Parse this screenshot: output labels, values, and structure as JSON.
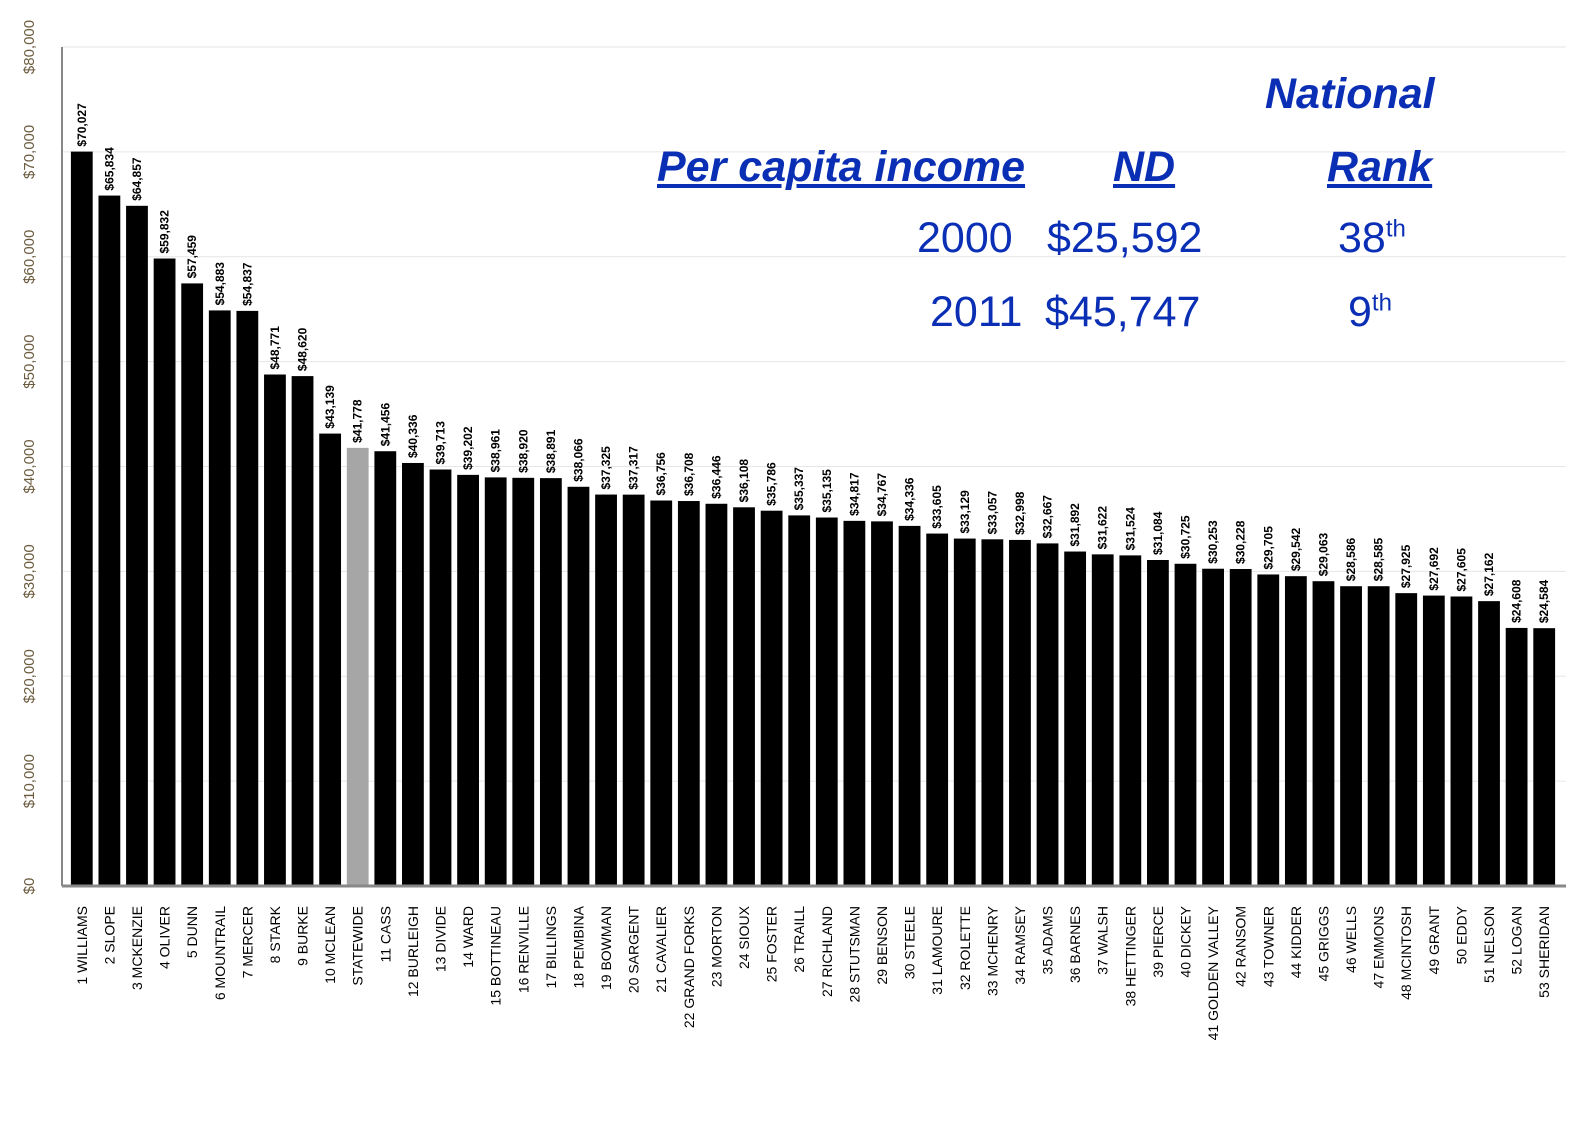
{
  "info_panel": {
    "header_top": "National",
    "col_label": "Per capita income",
    "col_nd": "ND",
    "col_rank": "Rank",
    "rows": [
      {
        "year": "2000",
        "nd": "$25,592",
        "rank_num": "38",
        "rank_suffix": "th"
      },
      {
        "year": "2011",
        "nd": "$45,747",
        "rank_num": "9",
        "rank_suffix": "th"
      }
    ]
  },
  "colors": {
    "bar": "#000000",
    "highlight": "#a6a6a6",
    "accent_text": "#0a2fb5"
  },
  "chart_data": {
    "type": "bar",
    "ylim": [
      0,
      80000
    ],
    "yticks": [
      0,
      10000,
      20000,
      30000,
      40000,
      50000,
      60000,
      70000,
      80000
    ],
    "ytick_labels": [
      "$0",
      "$10,000",
      "$20,000",
      "$30,000",
      "$40,000",
      "$50,000",
      "$60,000",
      "$70,000",
      "$80,000"
    ],
    "grid": true,
    "highlight_category": "STATEWIDE",
    "categories": [
      "1 WILLIAMS",
      "2 SLOPE",
      "3 MCKENZIE",
      "4 OLIVER",
      "5 DUNN",
      "6 MOUNTRAIL",
      "7 MERCER",
      "8 STARK",
      "9 BURKE",
      "10 MCLEAN",
      "STATEWIDE",
      "11 CASS",
      "12 BURLEIGH",
      "13 DIVIDE",
      "14 WARD",
      "15 BOTTINEAU",
      "16 RENVILLE",
      "17 BILLINGS",
      "18 PEMBINA",
      "19 BOWMAN",
      "20 SARGENT",
      "21 CAVALIER",
      "22 GRAND FORKS",
      "23 MORTON",
      "24 SIOUX",
      "25 FOSTER",
      "26 TRAILL",
      "27 RICHLAND",
      "28 STUTSMAN",
      "29 BENSON",
      "30 STEELE",
      "31 LAMOURE",
      "32 ROLETTE",
      "33 MCHENRY",
      "34 RAMSEY",
      "35 ADAMS",
      "36 BARNES",
      "37 WALSH",
      "38 HETTINGER",
      "39 PIERCE",
      "40 DICKEY",
      "41 GOLDEN VALLEY",
      "42 RANSOM",
      "43 TOWNER",
      "44 KIDDER",
      "45 GRIGGS",
      "46 WELLS",
      "47 EMMONS",
      "48 MCINTOSH",
      "49 GRANT",
      "50 EDDY",
      "51 NELSON",
      "52 LOGAN",
      "53 SHERIDAN"
    ],
    "values": [
      70027,
      65834,
      64857,
      59832,
      57459,
      54883,
      54837,
      48771,
      48620,
      43139,
      41778,
      41456,
      40336,
      39713,
      39202,
      38961,
      38920,
      38891,
      38066,
      37325,
      37317,
      36756,
      36708,
      36446,
      36108,
      35786,
      35337,
      35135,
      34817,
      34767,
      34336,
      33605,
      33129,
      33057,
      32998,
      32667,
      31892,
      31622,
      31524,
      31084,
      30725,
      30253,
      30228,
      29705,
      29542,
      29063,
      28586,
      28585,
      27925,
      27692,
      27605,
      27162,
      24608,
      24584
    ],
    "value_labels": [
      "$70,027",
      "$65,834",
      "$64,857",
      "$59,832",
      "$57,459",
      "$54,883",
      "$54,837",
      "$48,771",
      "$48,620",
      "$43,139",
      "$41,778",
      "$41,456",
      "$40,336",
      "$39,713",
      "$39,202",
      "$38,961",
      "$38,920",
      "$38,891",
      "$38,066",
      "$37,325",
      "$37,317",
      "$36,756",
      "$36,708",
      "$36,446",
      "$36,108",
      "$35,786",
      "$35,337",
      "$35,135",
      "$34,817",
      "$34,767",
      "$34,336",
      "$33,605",
      "$33,129",
      "$33,057",
      "$32,998",
      "$32,667",
      "$31,892",
      "$31,622",
      "$31,524",
      "$31,084",
      "$30,725",
      "$30,253",
      "$30,228",
      "$29,705",
      "$29,542",
      "$29,063",
      "$28,586",
      "$28,585",
      "$27,925",
      "$27,692",
      "$27,605",
      "$27,162",
      "$24,608",
      "$24,584"
    ]
  }
}
